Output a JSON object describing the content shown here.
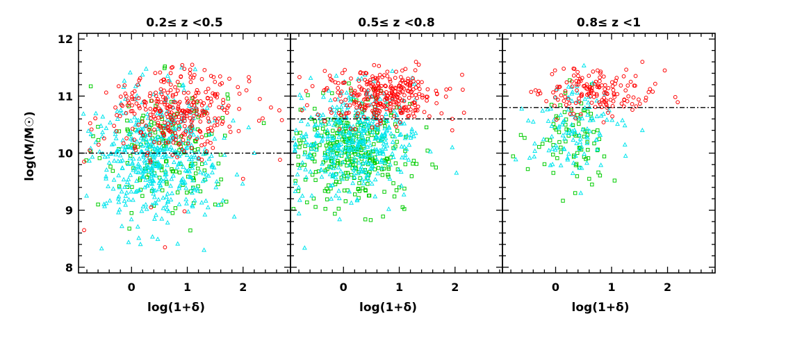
{
  "chart_data": [
    {
      "type": "scatter",
      "title": "0.2≤ z <0.5",
      "xlabel": "log(1+δ)",
      "ylabel": "log(M/M☉)",
      "xlim": [
        -0.95,
        2.85
      ],
      "ylim": [
        7.9,
        12.1
      ],
      "xticks": [
        "0",
        "1",
        "2"
      ],
      "yticks": [
        "8",
        "9",
        "10",
        "11",
        "12"
      ],
      "mass_limit": 10.0,
      "series": [
        {
          "name": "red",
          "marker": "circle",
          "color": "#ff0000",
          "center": [
            0.8,
            10.75
          ],
          "spread": [
            0.55,
            0.38
          ],
          "count": 320,
          "points": [
            [
              -0.85,
              8.65
            ],
            [
              -0.85,
              9.85
            ],
            [
              -0.75,
              10.05
            ],
            [
              0.35,
              9.05
            ],
            [
              0.95,
              8.98
            ],
            [
              0.6,
              8.35
            ],
            [
              2.5,
              10.8
            ],
            [
              2.65,
              10.75
            ],
            [
              2.0,
              9.55
            ],
            [
              2.3,
              10.95
            ]
          ]
        },
        {
          "name": "green",
          "marker": "square",
          "color": "#00cc00",
          "center": [
            0.6,
            10.1
          ],
          "spread": [
            0.55,
            0.55
          ],
          "count": 170,
          "points": [
            [
              -0.6,
              9.1
            ],
            [
              0.0,
              8.95
            ],
            [
              1.5,
              9.1
            ],
            [
              1.7,
              9.15
            ]
          ]
        },
        {
          "name": "cyan",
          "marker": "triangle",
          "color": "#00e5ee",
          "center": [
            0.45,
            9.95
          ],
          "spread": [
            0.55,
            0.6
          ],
          "count": 480,
          "points": [
            [
              1.3,
              8.3
            ],
            [
              2.1,
              10.45
            ],
            [
              2.2,
              10.0
            ],
            [
              0.9,
              11.5
            ]
          ]
        }
      ]
    },
    {
      "type": "scatter",
      "title": "0.5≤ z <0.8",
      "xlabel": "log(1+δ)",
      "ylabel": "",
      "xlim": [
        -0.95,
        2.85
      ],
      "ylim": [
        7.9,
        12.1
      ],
      "xticks": [
        "0",
        "1",
        "2"
      ],
      "yticks": [],
      "mass_limit": 10.6,
      "series": [
        {
          "name": "red",
          "marker": "circle",
          "color": "#ff0000",
          "center": [
            0.7,
            11.0
          ],
          "spread": [
            0.55,
            0.25
          ],
          "count": 300,
          "points": [
            [
              1.3,
              11.6
            ],
            [
              1.35,
              11.55
            ],
            [
              1.95,
              10.6
            ],
            [
              1.95,
              10.4
            ]
          ]
        },
        {
          "name": "green",
          "marker": "square",
          "color": "#00cc00",
          "center": [
            0.2,
            10.05
          ],
          "spread": [
            0.5,
            0.45
          ],
          "count": 330,
          "points": [
            [
              0.95,
              9.35
            ],
            [
              1.0,
              9.4
            ]
          ]
        },
        {
          "name": "cyan",
          "marker": "triangle",
          "color": "#00e5ee",
          "center": [
            0.2,
            10.2
          ],
          "spread": [
            0.55,
            0.45
          ],
          "count": 420,
          "points": [
            [
              1.95,
              10.1
            ],
            [
              -0.85,
              10.4
            ]
          ]
        }
      ]
    },
    {
      "type": "scatter",
      "title": "0.8≤ z <1",
      "xlabel": "log(1+δ)",
      "ylabel": "",
      "xlim": [
        -0.95,
        2.85
      ],
      "ylim": [
        7.9,
        12.1
      ],
      "xticks": [
        "0",
        "1",
        "2"
      ],
      "yticks": [],
      "mass_limit": 10.8,
      "series": [
        {
          "name": "red",
          "marker": "circle",
          "color": "#ff0000",
          "center": [
            0.8,
            11.05
          ],
          "spread": [
            0.5,
            0.2
          ],
          "count": 150,
          "points": [
            [
              1.55,
              11.6
            ],
            [
              1.95,
              11.45
            ],
            [
              0.75,
              11.45
            ],
            [
              0.8,
              11.4
            ]
          ]
        },
        {
          "name": "green",
          "marker": "square",
          "color": "#00cc00",
          "center": [
            0.3,
            10.3
          ],
          "spread": [
            0.35,
            0.35
          ],
          "count": 80,
          "points": [
            [
              0.35,
              9.3
            ],
            [
              0.6,
              9.55
            ],
            [
              0.65,
              9.45
            ]
          ]
        },
        {
          "name": "cyan",
          "marker": "triangle",
          "color": "#00e5ee",
          "center": [
            0.3,
            10.4
          ],
          "spread": [
            0.4,
            0.4
          ],
          "count": 110,
          "points": [
            [
              0.45,
              9.3
            ],
            [
              1.25,
              9.95
            ],
            [
              1.55,
              10.4
            ],
            [
              -0.4,
              10.55
            ]
          ]
        }
      ]
    }
  ]
}
